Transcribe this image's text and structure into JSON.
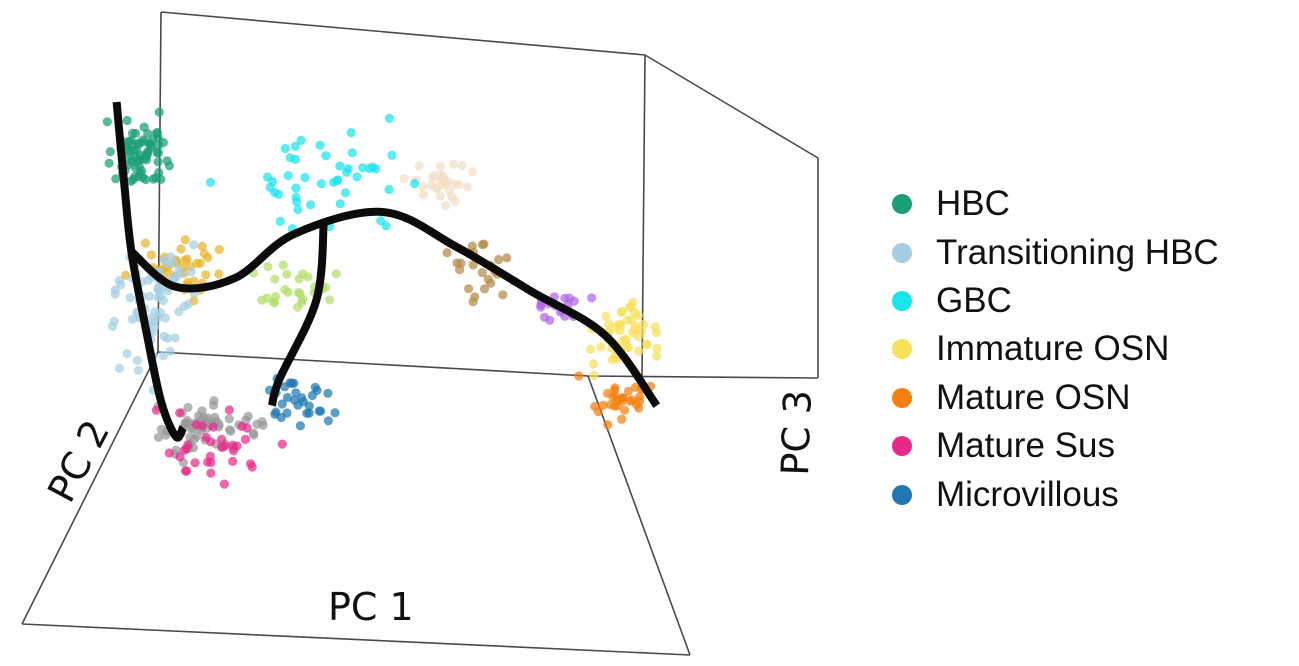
{
  "chart_data": {
    "type": "scatter",
    "subtype": "3d-scatter-with-trajectories",
    "axes": {
      "x_label": "PC 1",
      "y_label": "PC 2",
      "z_label": "PC 3"
    },
    "legend": {
      "placement": "right",
      "items": [
        {
          "name": "HBC",
          "color": "#1b9e77"
        },
        {
          "name": "Transitioning HBC",
          "color": "#a6cee3"
        },
        {
          "name": "GBC",
          "color": "#1be5ec"
        },
        {
          "name": "Immature OSN",
          "color": "#f7e15a"
        },
        {
          "name": "Mature OSN",
          "color": "#f47f0e"
        },
        {
          "name": "Mature Sus",
          "color": "#e7298a"
        },
        {
          "name": "Microvillous",
          "color": "#1f78b4"
        }
      ]
    },
    "series": [
      {
        "name": "HBC",
        "color": "#1b9e77",
        "cluster_center": [
          0.12,
          0.22
        ],
        "spread": [
          0.03,
          0.07
        ],
        "count": 70
      },
      {
        "name": "Transitioning HBC",
        "color": "#a6cee3",
        "cluster_center": [
          0.14,
          0.55
        ],
        "spread": [
          0.05,
          0.12
        ],
        "count": 75
      },
      {
        "name": "GBC",
        "color": "#1be5ec",
        "cluster_center": [
          0.38,
          0.3
        ],
        "spread": [
          0.12,
          0.12
        ],
        "count": 45
      },
      {
        "name": "Immature OSN",
        "color": "#f7e15a",
        "cluster_center": [
          0.77,
          0.62
        ],
        "spread": [
          0.05,
          0.07
        ],
        "count": 50
      },
      {
        "name": "Mature OSN",
        "color": "#f47f0e",
        "cluster_center": [
          0.77,
          0.78
        ],
        "spread": [
          0.04,
          0.04
        ],
        "count": 30
      },
      {
        "name": "Mature Sus",
        "color": "#e7298a",
        "cluster_center": [
          0.22,
          0.88
        ],
        "spread": [
          0.07,
          0.08
        ],
        "count": 35
      },
      {
        "name": "Microvillous",
        "color": "#1f78b4",
        "cluster_center": [
          0.33,
          0.78
        ],
        "spread": [
          0.05,
          0.05
        ],
        "count": 30
      }
    ],
    "unlabeled_clusters": [
      {
        "color": "#e7b42a",
        "cluster_center": [
          0.17,
          0.48
        ],
        "spread": [
          0.05,
          0.06
        ],
        "count": 40
      },
      {
        "color": "#b3de69",
        "cluster_center": [
          0.33,
          0.52
        ],
        "spread": [
          0.06,
          0.06
        ],
        "count": 28
      },
      {
        "color": "#999999",
        "cluster_center": [
          0.21,
          0.84
        ],
        "spread": [
          0.07,
          0.05
        ],
        "count": 60
      },
      {
        "color": "#f3dec7",
        "cluster_center": [
          0.53,
          0.28
        ],
        "spread": [
          0.04,
          0.05
        ],
        "count": 30
      },
      {
        "color": "#b48a45",
        "cluster_center": [
          0.58,
          0.47
        ],
        "spread": [
          0.05,
          0.06
        ],
        "count": 24
      },
      {
        "color": "#b265e6",
        "cluster_center": [
          0.69,
          0.57
        ],
        "spread": [
          0.03,
          0.03
        ],
        "count": 18
      }
    ],
    "trajectories": [
      {
        "name": "trajectory-to-mature-sus",
        "points": [
          [
            0.09,
            0.1
          ],
          [
            0.1,
            0.28
          ],
          [
            0.11,
            0.44
          ],
          [
            0.13,
            0.62
          ],
          [
            0.15,
            0.78
          ],
          [
            0.17,
            0.86
          ],
          [
            0.18,
            0.84
          ]
        ]
      },
      {
        "name": "trajectory-main",
        "points": [
          [
            0.11,
            0.44
          ],
          [
            0.17,
            0.52
          ],
          [
            0.25,
            0.5
          ],
          [
            0.33,
            0.4
          ],
          [
            0.45,
            0.35
          ],
          [
            0.55,
            0.43
          ],
          [
            0.65,
            0.53
          ],
          [
            0.75,
            0.63
          ],
          [
            0.82,
            0.79
          ]
        ]
      },
      {
        "name": "trajectory-to-microvillous",
        "points": [
          [
            0.37,
            0.37
          ],
          [
            0.36,
            0.55
          ],
          [
            0.31,
            0.73
          ],
          [
            0.3,
            0.79
          ]
        ]
      }
    ]
  }
}
